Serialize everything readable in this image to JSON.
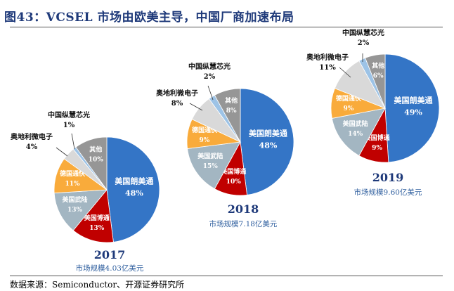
{
  "title": "图43：VCSEL 市场由欧美主导，中国厂商加速布局",
  "footer": "数据来源：Semiconductor、开源证券研究所",
  "colors": {
    "美国朗美通": "#3475c6",
    "美国博通": "#c00000",
    "美国武陆": "#a3b6c2",
    "德国通快": "#f9ab3b",
    "奥地利微电子": "#d9d9d9",
    "中国纵慧芯光": "#9dc3e6",
    "其他": "#969696"
  },
  "chart_data": [
    {
      "type": "pie",
      "title": "2017",
      "subtitle": "市场规模4.03亿美元",
      "labels": [
        "美国朗美通",
        "美国博通",
        "美国武陆",
        "德国通快",
        "奥地利微电子",
        "中国纵慧芯光",
        "其他"
      ],
      "values": [
        48,
        13,
        13,
        11,
        4,
        1,
        10
      ],
      "value_labels": [
        "48%",
        "13%",
        "13%",
        "11%",
        "4%",
        "1%",
        "10%"
      ]
    },
    {
      "type": "pie",
      "title": "2018",
      "subtitle": "市场规模7.18亿美元",
      "labels": [
        "美国朗美通",
        "美国博通",
        "美国武陆",
        "德国通快",
        "奥地利微电子",
        "中国纵慧芯光",
        "其他"
      ],
      "values": [
        48,
        10,
        15,
        9,
        8,
        2,
        8
      ],
      "value_labels": [
        "48%",
        "10%",
        "15%",
        "9%",
        "8%",
        "2%",
        "8%"
      ]
    },
    {
      "type": "pie",
      "title": "2019",
      "subtitle": "市场规模9.60亿美元",
      "labels": [
        "美国朗美通",
        "美国博通",
        "美国武陆",
        "德国通快",
        "奥地利微电子",
        "中国纵慧芯光",
        "其他"
      ],
      "values": [
        49,
        9,
        14,
        9,
        11,
        2,
        6
      ],
      "value_labels": [
        "49%",
        "9%",
        "14%",
        "9%",
        "11%",
        "2%",
        "6%"
      ]
    }
  ]
}
